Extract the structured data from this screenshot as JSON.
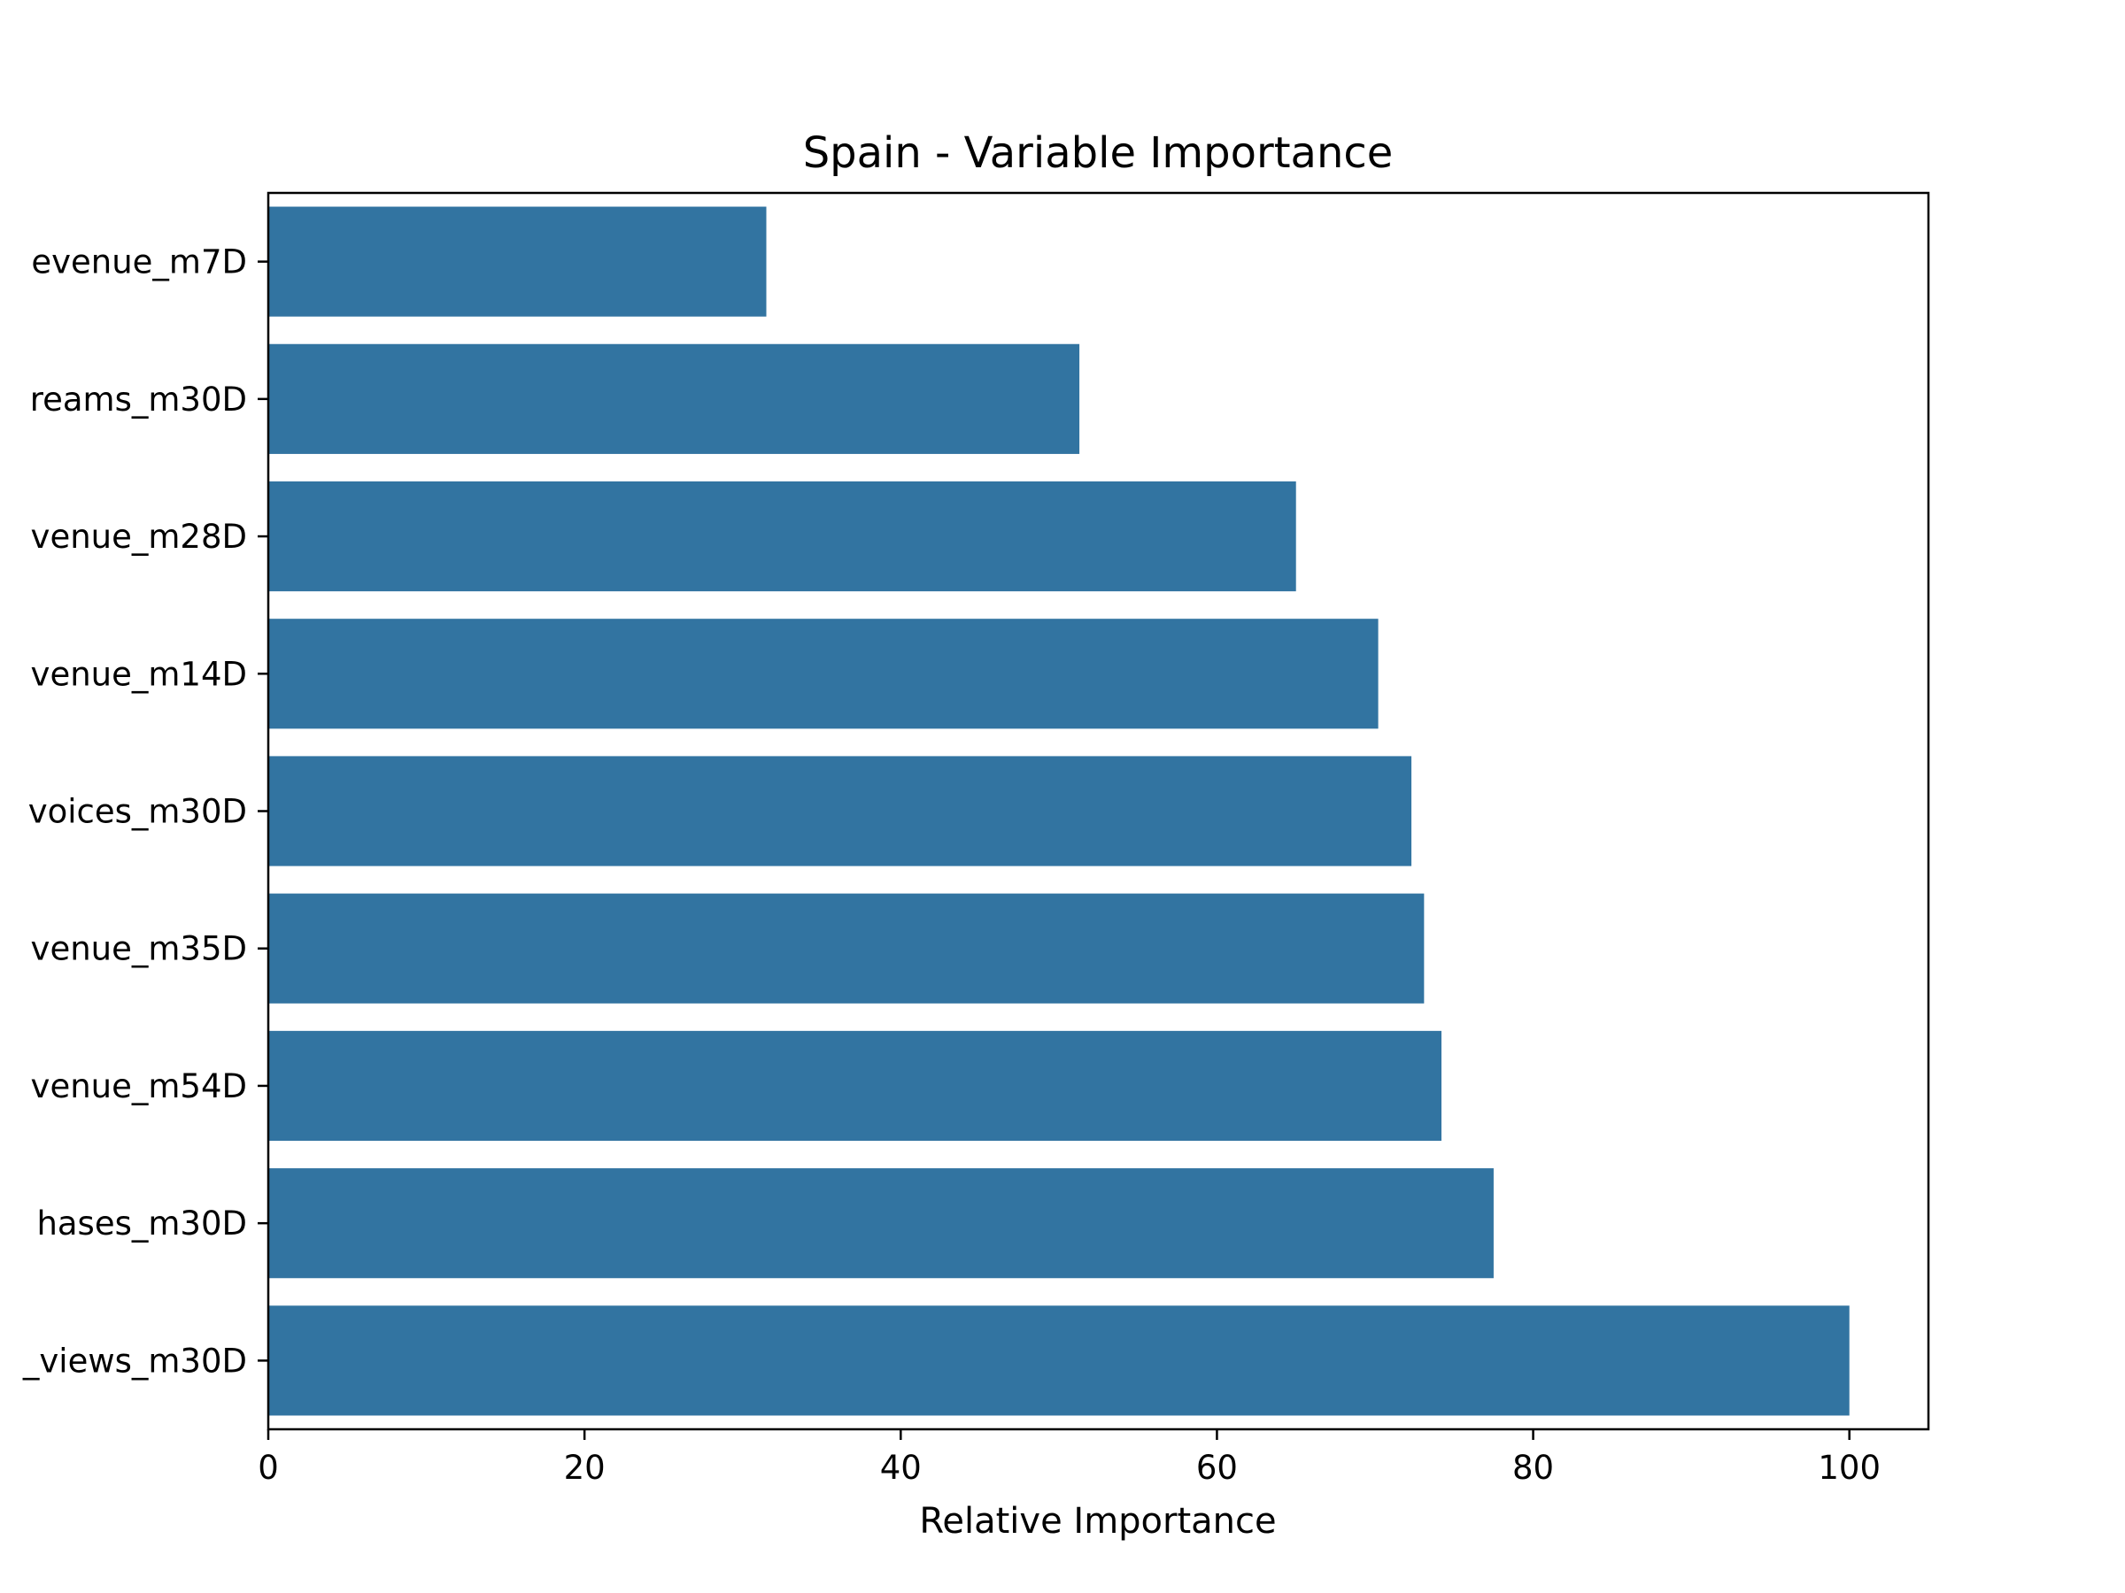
{
  "chart_data": {
    "type": "bar",
    "orientation": "horizontal",
    "title": "Spain - Variable Importance",
    "xlabel": "Relative Importance",
    "ylabel": "",
    "xlim": [
      0,
      105
    ],
    "xticks": [
      0,
      20,
      40,
      60,
      80,
      100
    ],
    "grid": false,
    "bar_color": "#3274a1",
    "categories": [
      "evenue_m7D",
      "reams_m30D",
      "venue_m28D",
      "venue_m14D",
      "voices_m30D",
      "venue_m35D",
      "venue_m54D",
      "hases_m30D",
      "_views_m30D"
    ],
    "values": [
      31.5,
      51.3,
      65.0,
      70.2,
      72.3,
      73.1,
      74.2,
      77.5,
      100
    ]
  }
}
